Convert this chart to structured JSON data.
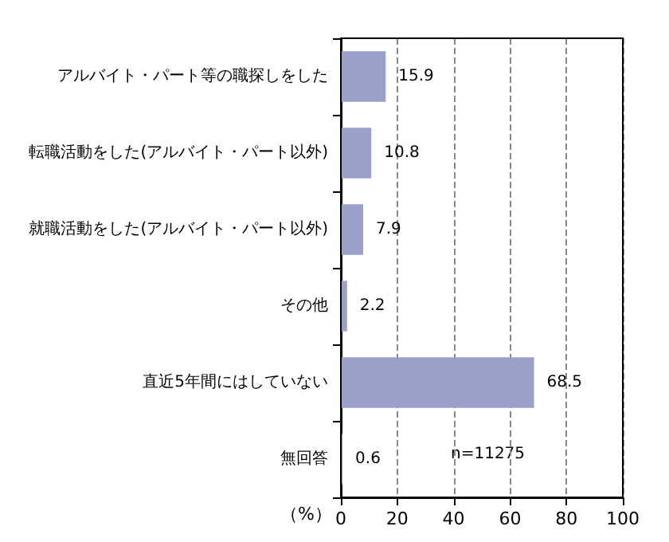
{
  "chart_data": {
    "type": "bar",
    "orientation": "horizontal",
    "xlabel": "（%）",
    "categories": [
      "アルバイト・パート等の職探しをした",
      "転職活動をした(アルバイト・パート以外)",
      "就職活動をした(アルバイト・パート以外)",
      "その他",
      "直近5年間にはしていない",
      "無回答"
    ],
    "values": [
      15.9,
      10.8,
      7.9,
      2.2,
      68.5,
      0.6
    ],
    "color": "#9aa0c8",
    "data_labels": true,
    "xlim": [
      0,
      100
    ],
    "xticks": [
      0,
      20,
      40,
      60,
      80,
      100
    ],
    "grid": "x",
    "annotations": [
      "n=11275"
    ]
  }
}
